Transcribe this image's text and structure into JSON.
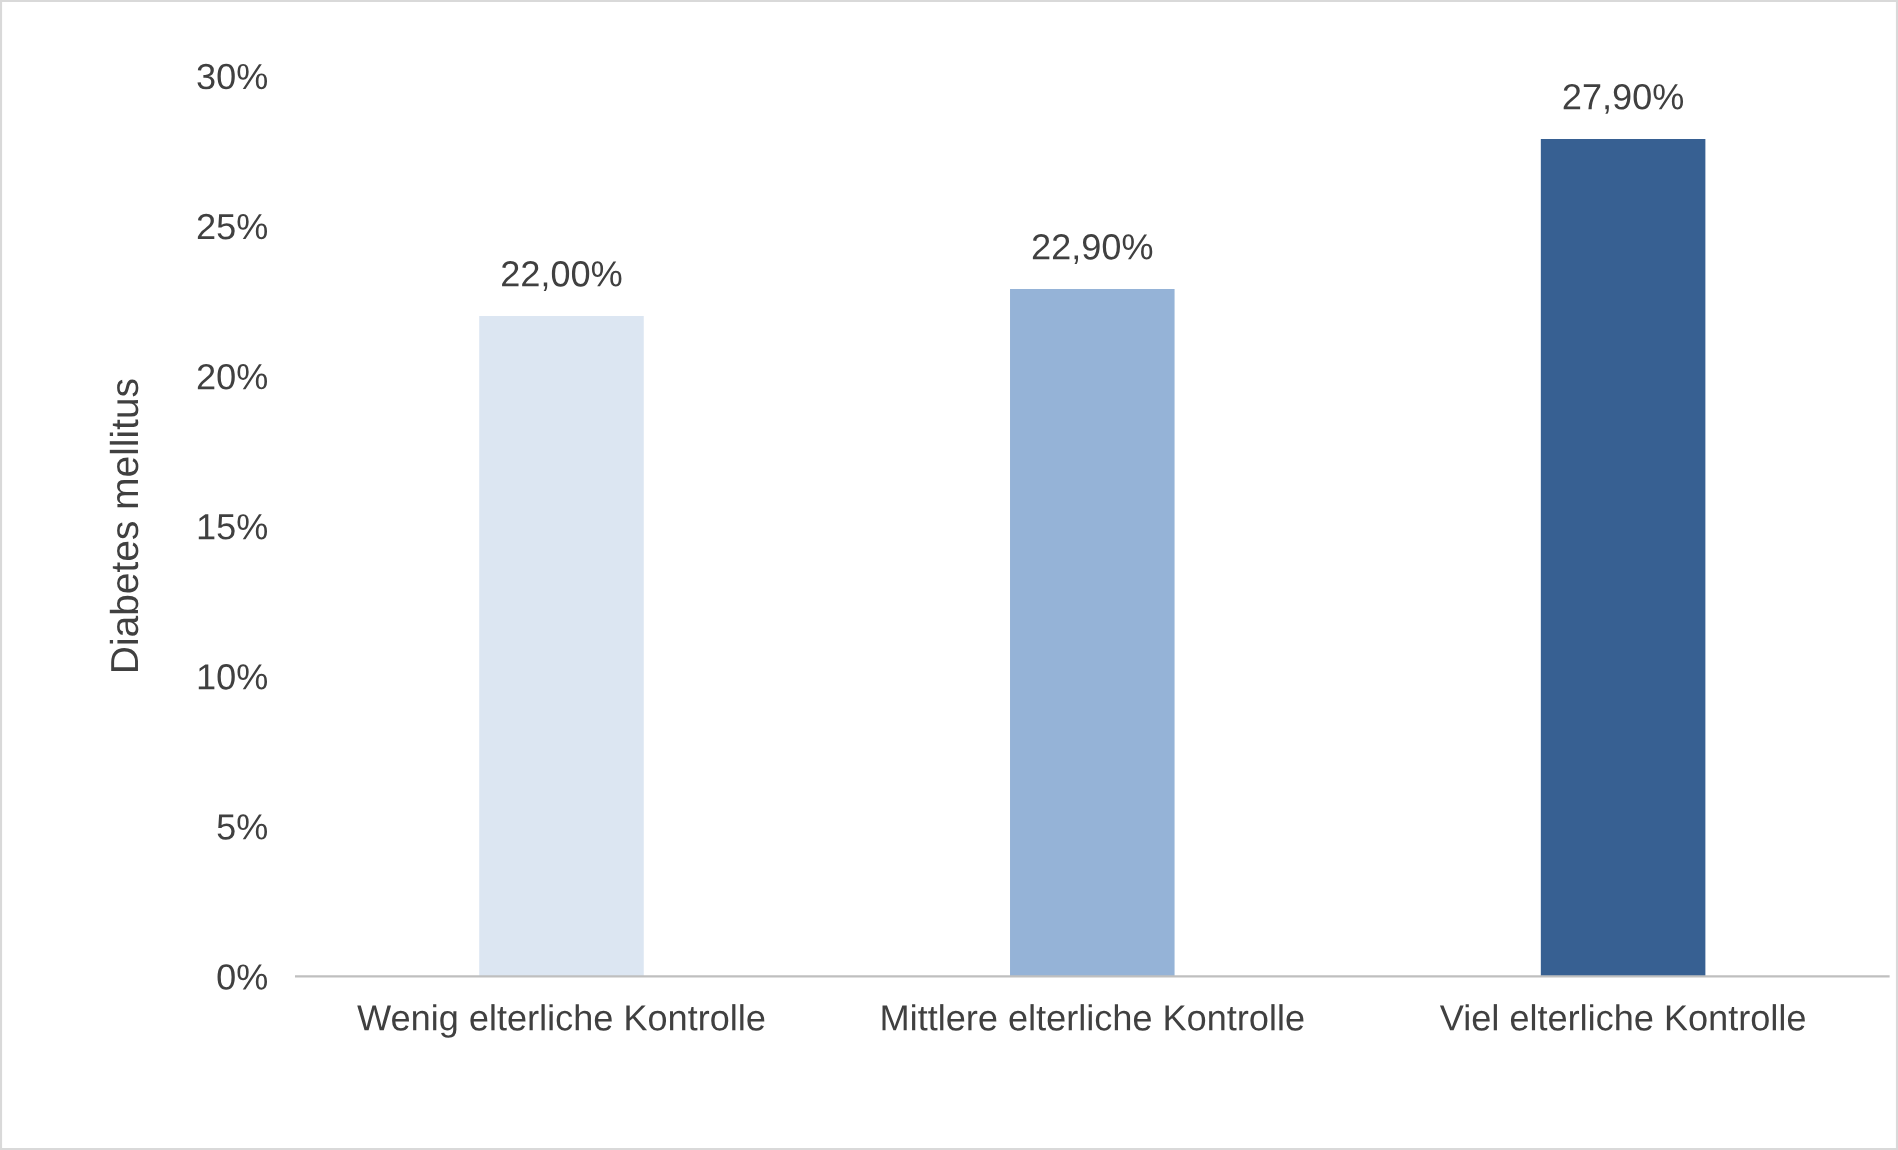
{
  "chart_data": {
    "type": "bar",
    "ylabel": "Diabetes mellitus",
    "categories": [
      "Wenig elterliche Kontrolle",
      "Mittlere elterliche Kontrolle",
      "Viel elterliche Kontrolle"
    ],
    "values": [
      22.0,
      22.9,
      27.9
    ],
    "colors": [
      "#dce6f2",
      "#95b3d7",
      "#376092"
    ],
    "value_labels": [
      "22,00%",
      "22,90%",
      "27,90%"
    ],
    "ylim": [
      0,
      30
    ],
    "yticks": [
      {
        "value": 0,
        "label": "0%"
      },
      {
        "value": 5,
        "label": "5%"
      },
      {
        "value": 10,
        "label": "10%"
      },
      {
        "value": 15,
        "label": "15%"
      },
      {
        "value": 20,
        "label": "20%"
      },
      {
        "value": 25,
        "label": "25%"
      },
      {
        "value": 30,
        "label": "30%"
      }
    ],
    "grid": false
  }
}
